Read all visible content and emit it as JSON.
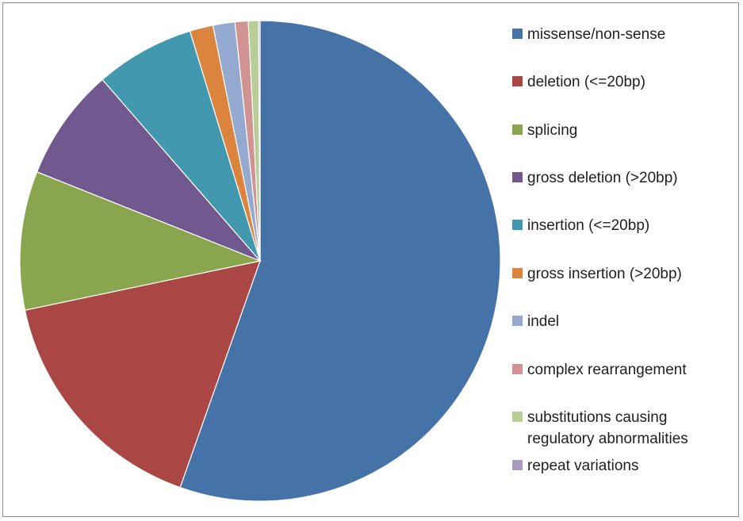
{
  "chart_data": {
    "type": "pie",
    "title": "",
    "legend_position": "right",
    "series": [
      {
        "values": [
          56.4,
          16.6,
          9.5,
          7.7,
          6.8,
          1.6,
          1.5,
          0.9,
          0.7,
          0.1
        ],
        "categories": [
          "missense/non-sense",
          "deletion (<=20bp)",
          "splicing",
          "gross deletion (>20bp)",
          "insertion (<=20bp)",
          "gross insertion (>20bp)",
          "indel",
          "complex rearrangement",
          "substitutions causing\nregulatory abnormalities",
          "repeat variations"
        ],
        "colors": [
          "#4572A7",
          "#AA4643",
          "#89A54E",
          "#71588F",
          "#4198AF",
          "#DB843D",
          "#93A9CF",
          "#D19392",
          "#B9CD96",
          "#A99BBD"
        ]
      }
    ],
    "legend": [
      {
        "label": "missense/non-sense",
        "color": "#4572A7"
      },
      {
        "label": "deletion (<=20bp)",
        "color": "#AA4643"
      },
      {
        "label": "splicing",
        "color": "#89A54E"
      },
      {
        "label": "gross deletion (>20bp)",
        "color": "#71588F"
      },
      {
        "label": "insertion (<=20bp)",
        "color": "#4198AF"
      },
      {
        "label": "gross insertion (>20bp)",
        "color": "#DB843D"
      },
      {
        "label": "indel",
        "color": "#93A9CF"
      },
      {
        "label": "complex rearrangement",
        "color": "#D19392"
      },
      {
        "label": "substitutions causing\nregulatory abnormalities",
        "color": "#B9CD96"
      },
      {
        "label": "repeat variations",
        "color": "#A99BBD"
      }
    ]
  }
}
